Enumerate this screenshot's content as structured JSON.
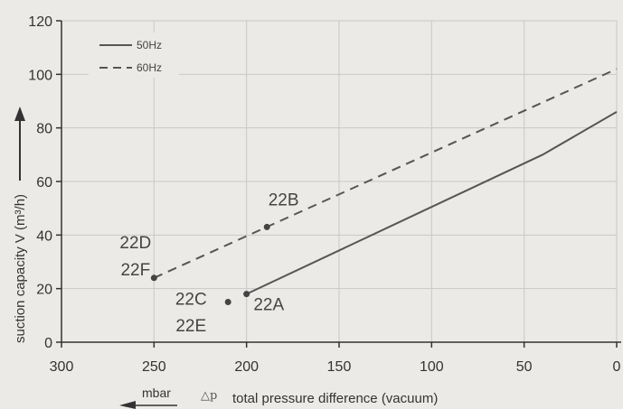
{
  "chart_data": {
    "type": "line",
    "xlabel": "total pressure difference (vacuum)",
    "xlabel_symbol": "△p",
    "xlabel_unit": "mbar",
    "ylabel": "suction capacity V (m³/h)",
    "xlim": [
      300,
      0
    ],
    "ylim": [
      0,
      120
    ],
    "x_ticks": [
      "300",
      "250",
      "200",
      "150",
      "100",
      "50",
      "0"
    ],
    "y_ticks": [
      "0",
      "20",
      "40",
      "60",
      "80",
      "100",
      "120"
    ],
    "grid": true,
    "legend_position": "top-left",
    "series": [
      {
        "name": "50Hz",
        "style": "solid",
        "points": [
          [
            200,
            18
          ],
          [
            40,
            70
          ],
          [
            0,
            86
          ]
        ]
      },
      {
        "name": "60Hz",
        "style": "dashed",
        "points": [
          [
            250,
            24
          ],
          [
            0,
            102
          ]
        ]
      }
    ],
    "markers": [
      {
        "x": 250,
        "y": 24
      },
      {
        "x": 189,
        "y": 43
      },
      {
        "x": 200,
        "y": 18
      },
      {
        "x": 210,
        "y": 15
      }
    ],
    "annotations": [
      {
        "text": "22D",
        "x": 260,
        "y": 35
      },
      {
        "text": "22F",
        "x": 260,
        "y": 25
      },
      {
        "text": "22B",
        "x": 180,
        "y": 51
      },
      {
        "text": "22C",
        "x": 230,
        "y": 14
      },
      {
        "text": "22E",
        "x": 230,
        "y": 4
      },
      {
        "text": "22A",
        "x": 188,
        "y": 12
      }
    ],
    "colors": {
      "line": "#555555",
      "grid": "#c8c8c8",
      "background": "#ebeae6"
    }
  }
}
